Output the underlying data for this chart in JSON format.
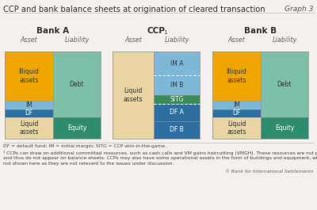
{
  "title": "CCP and bank balance sheets at origination of cleared transaction",
  "graph_label": "Graph 3",
  "background_color": "#f5f0eb",
  "panels": [
    {
      "name": "Bank A",
      "asset_label": "Asset",
      "liability_label": "Liability",
      "asset_segments": [
        {
          "label": "Illiquid\nassets",
          "value": 0.45,
          "color": "#f0a500"
        },
        {
          "label": "IM",
          "value": 0.08,
          "color": "#7db8d8"
        },
        {
          "label": "DF",
          "value": 0.07,
          "color": "#2e6fa3"
        },
        {
          "label": "Liquid\nassets",
          "value": 0.2,
          "color": "#e8d5a3"
        }
      ],
      "liability_segments": [
        {
          "label": "Debt",
          "value": 0.6,
          "color": "#7dbfa8"
        },
        {
          "label": "Equity",
          "value": 0.2,
          "color": "#2e8b6e"
        }
      ],
      "dotted_lines": []
    },
    {
      "name": "CCP",
      "name_superscript": "1",
      "asset_label": "Asset",
      "liability_label": "Liability",
      "asset_segments": [
        {
          "label": "Liquid\nassets",
          "value": 0.8,
          "color": "#e8d5a3"
        }
      ],
      "liability_segments": [
        {
          "label": "IM A",
          "value": 0.22,
          "color": "#7db8d8"
        },
        {
          "label": "IM B",
          "value": 0.18,
          "color": "#7db8d8"
        },
        {
          "label": "SITG",
          "value": 0.08,
          "color": "#3a8a5a"
        },
        {
          "label": "DF A",
          "value": 0.16,
          "color": "#2e6fa3"
        },
        {
          "label": "DF B",
          "value": 0.16,
          "color": "#2e6fa3"
        }
      ],
      "dotted_lines": [
        0.22,
        0.48
      ]
    },
    {
      "name": "Bank B",
      "asset_label": "Asset",
      "liability_label": "Liability",
      "asset_segments": [
        {
          "label": "Illiquid\nassets",
          "value": 0.45,
          "color": "#f0a500"
        },
        {
          "label": "IM",
          "value": 0.08,
          "color": "#7db8d8"
        },
        {
          "label": "DF",
          "value": 0.07,
          "color": "#2e6fa3"
        },
        {
          "label": "Liquid\nassets",
          "value": 0.2,
          "color": "#e8d5a3"
        }
      ],
      "liability_segments": [
        {
          "label": "Debt",
          "value": 0.6,
          "color": "#7dbfa8"
        },
        {
          "label": "Equity",
          "value": 0.2,
          "color": "#2e8b6e"
        }
      ],
      "dotted_lines": []
    }
  ],
  "footnote_line1": "DF = default fund; IM = initial margin; SITG = CCP skin-in-the-game.",
  "footnote_line2": "¹ CCPs can draw on additional committed resources, such as cash calls and VM gains haircutting (VMGH). These resources are not prefunded",
  "footnote_line3": "and thus do not appear on balance sheets. CCPs may also have some operational assets in the form of buildings and equipment, which are",
  "footnote_line4": "not shown here as they are not relevant to the issues under discussion.",
  "footnote_line5": "© Bank for International Settlements"
}
